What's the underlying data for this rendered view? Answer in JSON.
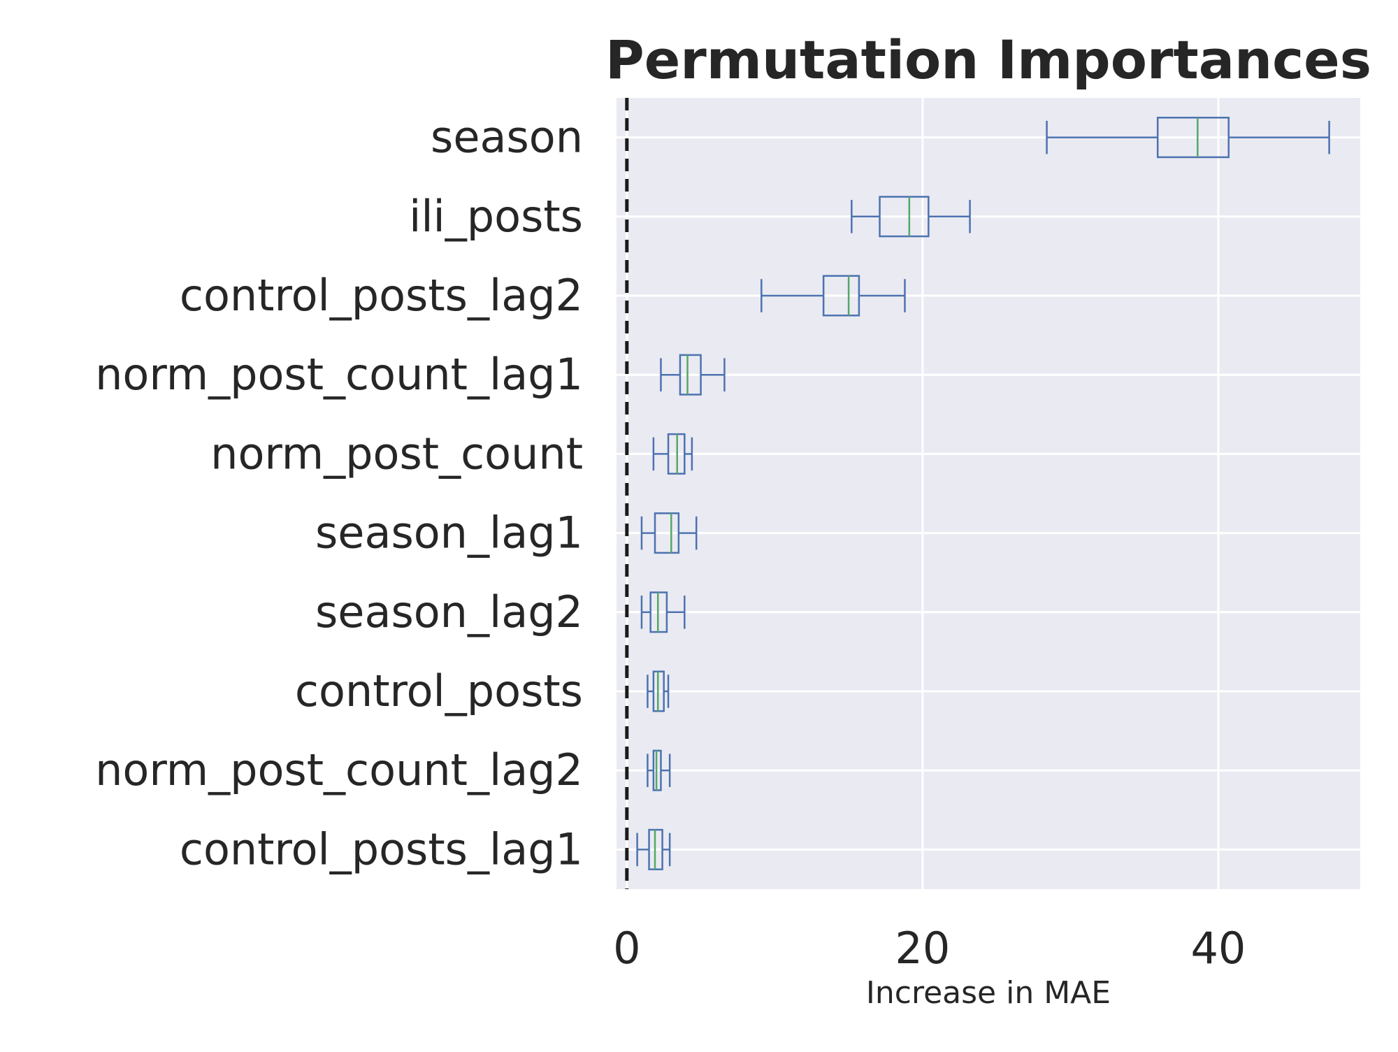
{
  "chart_data": {
    "type": "box",
    "orientation": "horizontal",
    "title": "Permutation Importances",
    "xlabel": "Increase in MAE",
    "ylabel": "",
    "xlim": [
      -0.7,
      49.6
    ],
    "xticks": [
      0,
      20,
      40
    ],
    "grid": true,
    "reference_line": {
      "x": 0,
      "style": "dashed",
      "color": "#1a1a1a"
    },
    "colors": {
      "plot_background": "#eaeaf2",
      "grid": "#ffffff",
      "box": "#4c72b0",
      "median": "#55a868"
    },
    "features": [
      {
        "name": "season",
        "whisker_low": 28.4,
        "q1": 35.9,
        "median": 38.6,
        "q3": 40.7,
        "whisker_high": 47.5
      },
      {
        "name": "ili_posts",
        "whisker_low": 15.2,
        "q1": 17.1,
        "median": 19.1,
        "q3": 20.4,
        "whisker_high": 23.2
      },
      {
        "name": "control_posts_lag2",
        "whisker_low": 9.1,
        "q1": 13.3,
        "median": 15.0,
        "q3": 15.7,
        "whisker_high": 18.8
      },
      {
        "name": "norm_post_count_lag1",
        "whisker_low": 2.3,
        "q1": 3.6,
        "median": 4.1,
        "q3": 5.0,
        "whisker_high": 6.6
      },
      {
        "name": "norm_post_count",
        "whisker_low": 1.8,
        "q1": 2.8,
        "median": 3.4,
        "q3": 3.9,
        "whisker_high": 4.4
      },
      {
        "name": "season_lag1",
        "whisker_low": 1.0,
        "q1": 1.9,
        "median": 3.0,
        "q3": 3.5,
        "whisker_high": 4.7
      },
      {
        "name": "season_lag2",
        "whisker_low": 1.0,
        "q1": 1.6,
        "median": 2.1,
        "q3": 2.7,
        "whisker_high": 3.9
      },
      {
        "name": "control_posts",
        "whisker_low": 1.4,
        "q1": 1.8,
        "median": 2.1,
        "q3": 2.5,
        "whisker_high": 2.8
      },
      {
        "name": "norm_post_count_lag2",
        "whisker_low": 1.4,
        "q1": 1.8,
        "median": 2.0,
        "q3": 2.3,
        "whisker_high": 2.9
      },
      {
        "name": "control_posts_lag1",
        "whisker_low": 0.7,
        "q1": 1.5,
        "median": 1.9,
        "q3": 2.4,
        "whisker_high": 2.9
      }
    ]
  }
}
